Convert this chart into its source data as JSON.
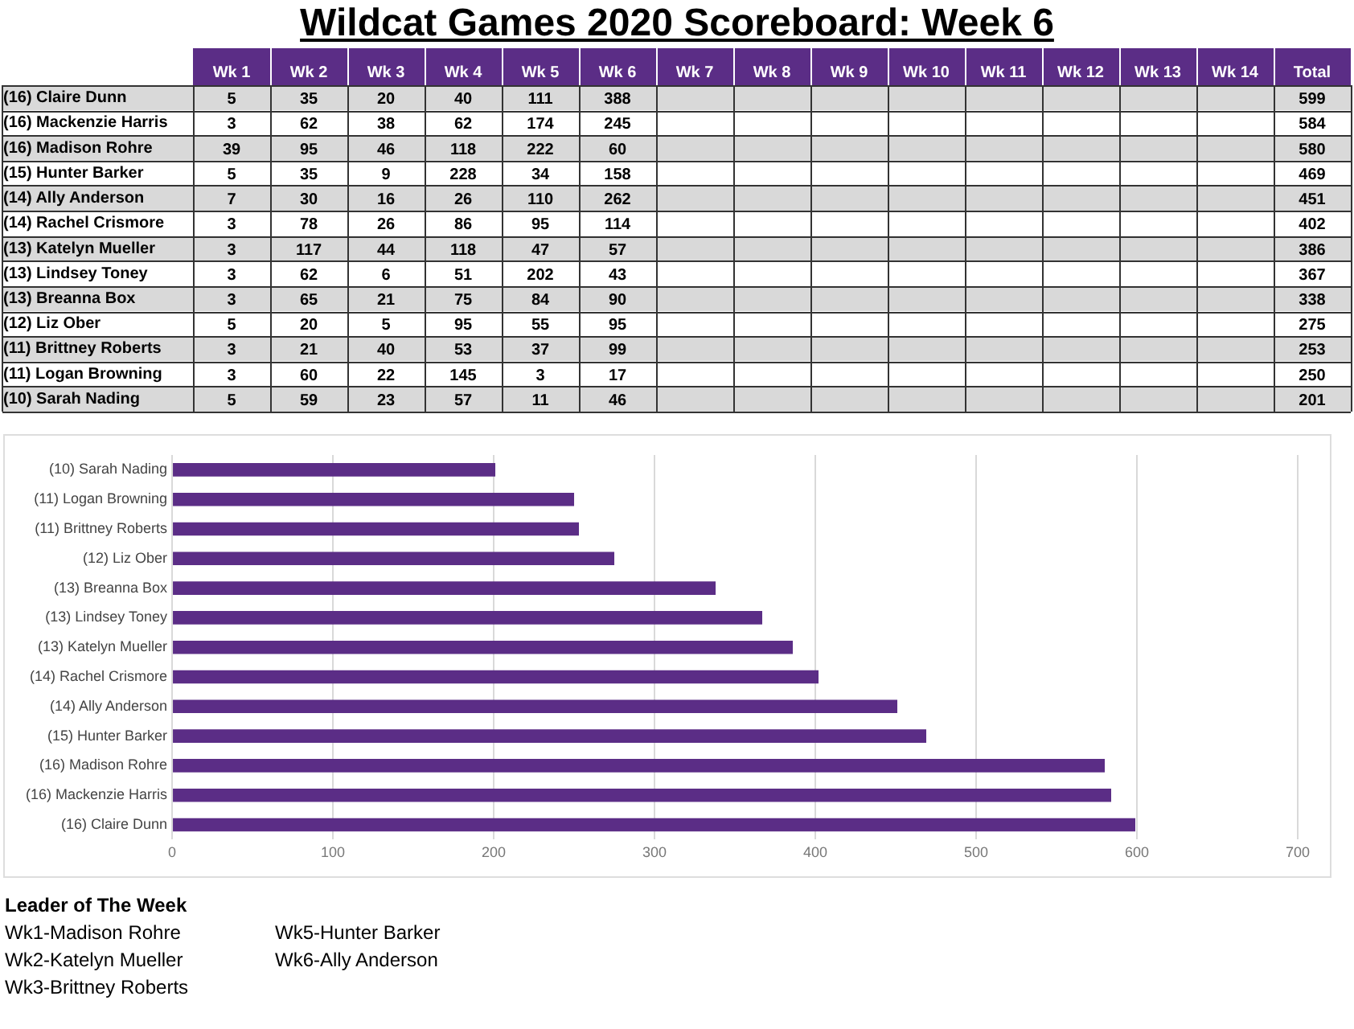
{
  "chart_data": [
    {
      "type": "heatmap",
      "title": "Wildcat Games 2020 Scoreboard: Week 6",
      "categories": [
        "Wk 1",
        "Wk 2",
        "Wk 3",
        "Wk 4",
        "Wk 5",
        "Wk 6",
        "Wk 7",
        "Wk 8",
        "Wk 9",
        "Wk 10",
        "Wk 11",
        "Wk 12",
        "Wk 13",
        "Wk 14",
        "Total"
      ],
      "y_categories": [
        "(16) Claire Dunn",
        "(16) Mackenzie Harris",
        "(16) Madison Rohre",
        "(15) Hunter Barker",
        "(14) Ally Anderson",
        "(14) Rachel Crismore",
        "(13) Katelyn Mueller",
        "(13) Lindsey Toney",
        "(13) Breanna Box",
        "(12) Liz Ober",
        "(11) Brittney Roberts",
        "(11) Logan Browning",
        "(10) Sarah Nading"
      ],
      "data_labels": true,
      "cells": [
        [
          5,
          35,
          20,
          40,
          111,
          388,
          null,
          null,
          null,
          null,
          null,
          null,
          null,
          null,
          599
        ],
        [
          3,
          62,
          38,
          62,
          174,
          245,
          null,
          null,
          null,
          null,
          null,
          null,
          null,
          null,
          584
        ],
        [
          39,
          95,
          46,
          118,
          222,
          60,
          null,
          null,
          null,
          null,
          null,
          null,
          null,
          null,
          580
        ],
        [
          5,
          35,
          9,
          228,
          34,
          158,
          null,
          null,
          null,
          null,
          null,
          null,
          null,
          null,
          469
        ],
        [
          7,
          30,
          16,
          26,
          110,
          262,
          null,
          null,
          null,
          null,
          null,
          null,
          null,
          null,
          451
        ],
        [
          3,
          78,
          26,
          86,
          95,
          114,
          null,
          null,
          null,
          null,
          null,
          null,
          null,
          null,
          402
        ],
        [
          3,
          117,
          44,
          118,
          47,
          57,
          null,
          null,
          null,
          null,
          null,
          null,
          null,
          null,
          386
        ],
        [
          3,
          62,
          6,
          51,
          202,
          43,
          null,
          null,
          null,
          null,
          null,
          null,
          null,
          null,
          367
        ],
        [
          3,
          65,
          21,
          75,
          84,
          90,
          null,
          null,
          null,
          null,
          null,
          null,
          null,
          null,
          338
        ],
        [
          5,
          20,
          5,
          95,
          55,
          95,
          null,
          null,
          null,
          null,
          null,
          null,
          null,
          null,
          275
        ],
        [
          3,
          21,
          40,
          53,
          37,
          99,
          null,
          null,
          null,
          null,
          null,
          null,
          null,
          null,
          253
        ],
        [
          3,
          60,
          22,
          145,
          3,
          17,
          null,
          null,
          null,
          null,
          null,
          null,
          null,
          null,
          250
        ],
        [
          5,
          59,
          23,
          57,
          11,
          46,
          null,
          null,
          null,
          null,
          null,
          null,
          null,
          null,
          201
        ]
      ]
    },
    {
      "type": "bar",
      "orientation": "horizontal",
      "categories": [
        "(10) Sarah Nading",
        "(11) Logan Browning",
        "(11) Brittney Roberts",
        "(12) Liz Ober",
        "(13) Breanna Box",
        "(13) Lindsey Toney",
        "(13) Katelyn Mueller",
        "(14) Rachel Crismore",
        "(14) Ally Anderson",
        "(15) Hunter Barker",
        "(16) Madison Rohre",
        "(16) Mackenzie Harris",
        "(16) Claire Dunn"
      ],
      "values": [
        201,
        250,
        253,
        275,
        338,
        367,
        386,
        402,
        451,
        469,
        580,
        584,
        599
      ],
      "color": "#5b2d86",
      "xlim": [
        0,
        700
      ],
      "xticks": [
        0,
        100,
        200,
        300,
        400,
        500,
        600,
        700
      ],
      "grid": "x",
      "annotations": [
        "Leader of The Week",
        "Wk1-Madison Rohre",
        "Wk2-Katelyn Mueller",
        "Wk3-Brittney Roberts",
        "Wk5-Hunter Barker",
        "Wk6-Ally Anderson"
      ]
    }
  ]
}
